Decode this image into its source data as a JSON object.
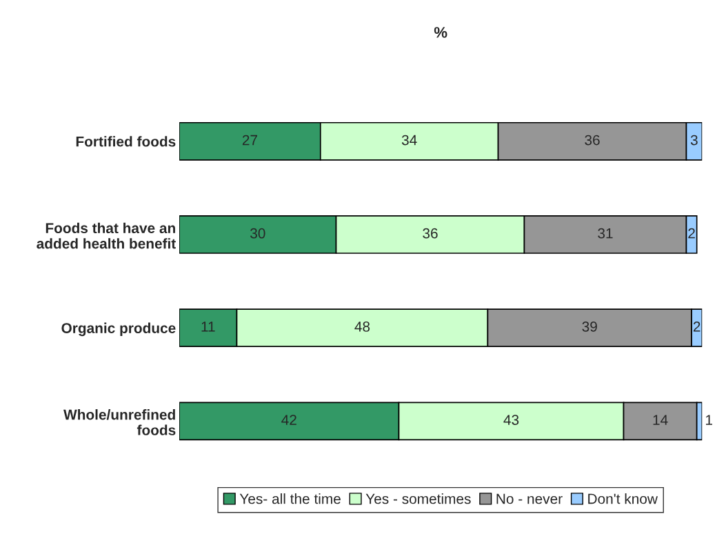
{
  "chart_data": {
    "type": "bar",
    "orientation": "horizontal",
    "stacked": true,
    "title": "%",
    "categories": [
      "Fortified foods",
      "Foods that have an\nadded health benefit",
      "Organic produce",
      "Whole/unrefined\nfoods"
    ],
    "series": [
      {
        "name": "Yes- all the time",
        "color": "#339966",
        "values": [
          27,
          30,
          11,
          42
        ]
      },
      {
        "name": "Yes - sometimes",
        "color": "#ccffcc",
        "values": [
          34,
          36,
          48,
          43
        ]
      },
      {
        "name": "No - never",
        "color": "#969696",
        "values": [
          36,
          31,
          39,
          14
        ]
      },
      {
        "name": "Don't know",
        "color": "#99ccff",
        "values": [
          3,
          2,
          2,
          1
        ]
      }
    ],
    "xlim": [
      0,
      100
    ],
    "tick_labels": "y",
    "data_labels": true,
    "legend": "bottom",
    "grid": false
  }
}
